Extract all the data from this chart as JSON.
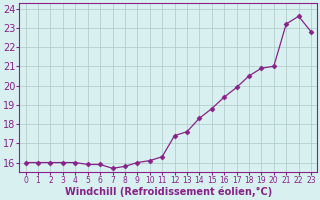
{
  "x": [
    0,
    1,
    2,
    3,
    4,
    5,
    6,
    7,
    8,
    9,
    10,
    11,
    12,
    13,
    14,
    15,
    16,
    17,
    18,
    19,
    20,
    21,
    22,
    23
  ],
  "y": [
    16.0,
    16.0,
    16.0,
    16.0,
    16.0,
    15.9,
    15.9,
    15.7,
    15.8,
    16.0,
    16.1,
    16.3,
    17.4,
    17.6,
    18.3,
    18.8,
    19.4,
    19.9,
    20.5,
    20.9,
    21.0,
    23.2,
    23.6,
    22.8
  ],
  "ylim": [
    15.5,
    24.3
  ],
  "yticks": [
    16,
    17,
    18,
    19,
    20,
    21,
    22,
    23,
    24
  ],
  "xtick_labels": [
    "0",
    "1",
    "2",
    "3",
    "4",
    "5",
    "6",
    "7",
    "8",
    "9",
    "10",
    "11",
    "12",
    "13",
    "14",
    "15",
    "16",
    "17",
    "18",
    "19",
    "20",
    "21",
    "22",
    "23"
  ],
  "xlabel": "Windchill (Refroidissement éolien,°C)",
  "line_color": "#882288",
  "marker": "D",
  "marker_size": 2.5,
  "bg_color": "#d8f0f0",
  "grid_color": "#adc8c8",
  "tick_color": "#882288",
  "label_color": "#882288",
  "font_size_xlabel": 7,
  "font_size_ytick": 7,
  "font_size_xtick": 5.5
}
